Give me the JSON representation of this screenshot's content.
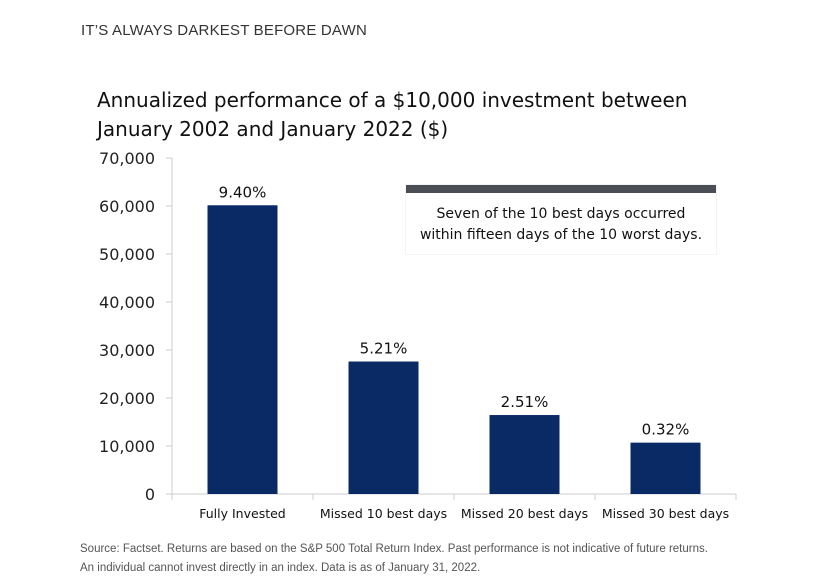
{
  "kicker": "IT’S ALWAYS DARKEST BEFORE DAWN",
  "callout": {
    "line1": "Seven of the 10 best days occurred",
    "line2": "within fifteen days of the 10 worst days."
  },
  "source": {
    "line1": "Source: Factset. Returns are based on the S&P 500 Total Return Index. Past performance is not indicative of future returns.",
    "line2": "An individual cannot invest directly in an index. Data is as of January 31, 2022."
  },
  "colors": {
    "bar": "#0a2a66",
    "axis": "#cccccc",
    "callout_bar": "#4b4f55"
  },
  "chart_data": {
    "type": "bar",
    "title": "Annualized performance of a $10,000 investment between January 2002 and January 2022 ($)",
    "xlabel": "",
    "ylabel": "",
    "categories": [
      "Fully Invested",
      "Missed 10 best days",
      "Missed 20 best days",
      "Missed 30 best days"
    ],
    "values": [
      60150,
      27600,
      16450,
      10700
    ],
    "data_labels": [
      "9.40%",
      "5.21%",
      "2.51%",
      "0.32%"
    ],
    "ylim": [
      0,
      70000
    ],
    "yticks": [
      0,
      10000,
      20000,
      30000,
      40000,
      50000,
      60000,
      70000
    ],
    "ytick_labels": [
      "0",
      "10,000",
      "20,000",
      "30,000",
      "40,000",
      "50,000",
      "60,000",
      "70,000"
    ],
    "grid": false,
    "legend": "none"
  }
}
